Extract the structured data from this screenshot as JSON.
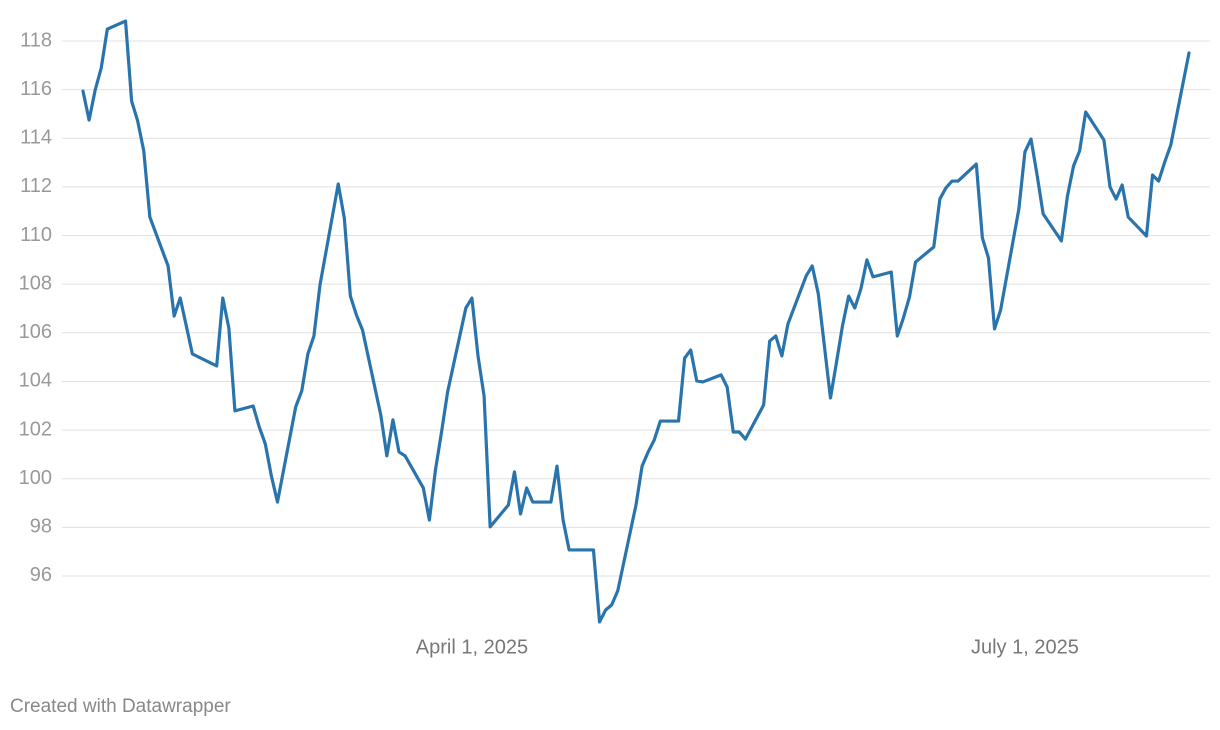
{
  "chart_data": {
    "type": "line",
    "x": [
      "2025-01-27",
      "2025-01-28",
      "2025-01-29",
      "2025-01-30",
      "2025-01-31",
      "2025-02-03",
      "2025-02-04",
      "2025-02-05",
      "2025-02-06",
      "2025-02-07",
      "2025-02-10",
      "2025-02-11",
      "2025-02-12",
      "2025-02-13",
      "2025-02-14",
      "2025-02-18",
      "2025-02-19",
      "2025-02-20",
      "2025-02-21",
      "2025-02-24",
      "2025-02-25",
      "2025-02-26",
      "2025-02-27",
      "2025-02-28",
      "2025-03-03",
      "2025-03-04",
      "2025-03-05",
      "2025-03-06",
      "2025-03-07",
      "2025-03-10",
      "2025-03-11",
      "2025-03-12",
      "2025-03-13",
      "2025-03-14",
      "2025-03-17",
      "2025-03-18",
      "2025-03-19",
      "2025-03-20",
      "2025-03-21",
      "2025-03-24",
      "2025-03-25",
      "2025-03-26",
      "2025-03-27",
      "2025-03-28",
      "2025-03-31",
      "2025-04-01",
      "2025-04-02",
      "2025-04-03",
      "2025-04-04",
      "2025-04-07",
      "2025-04-08",
      "2025-04-09",
      "2025-04-10",
      "2025-04-11",
      "2025-04-14",
      "2025-04-15",
      "2025-04-16",
      "2025-04-17",
      "2025-04-21",
      "2025-04-22",
      "2025-04-23",
      "2025-04-24",
      "2025-04-25",
      "2025-04-28",
      "2025-04-29",
      "2025-04-30",
      "2025-05-01",
      "2025-05-02",
      "2025-05-05",
      "2025-05-06",
      "2025-05-07",
      "2025-05-08",
      "2025-05-09",
      "2025-05-12",
      "2025-05-13",
      "2025-05-14",
      "2025-05-15",
      "2025-05-16",
      "2025-05-19",
      "2025-05-20",
      "2025-05-21",
      "2025-05-22",
      "2025-05-23",
      "2025-05-26",
      "2025-05-27",
      "2025-05-28",
      "2025-05-30",
      "2025-05-31",
      "2025-06-01",
      "2025-06-02",
      "2025-06-03",
      "2025-06-04",
      "2025-06-05",
      "2025-06-06",
      "2025-06-09",
      "2025-06-10",
      "2025-06-11",
      "2025-06-12",
      "2025-06-13",
      "2025-06-16",
      "2025-06-17",
      "2025-06-18",
      "2025-06-19",
      "2025-06-20",
      "2025-06-23",
      "2025-06-24",
      "2025-06-25",
      "2025-06-26",
      "2025-06-27",
      "2025-06-30",
      "2025-07-01",
      "2025-07-02",
      "2025-07-03",
      "2025-07-04",
      "2025-07-07",
      "2025-07-08",
      "2025-07-09",
      "2025-07-10",
      "2025-07-11",
      "2025-07-14",
      "2025-07-15",
      "2025-07-16",
      "2025-07-17",
      "2025-07-18",
      "2025-07-21",
      "2025-07-22",
      "2025-07-23",
      "2025-07-24",
      "2025-07-25",
      "2025-07-28"
    ],
    "values": [
      115.94,
      114.75,
      115.98,
      116.89,
      118.49,
      118.82,
      115.53,
      114.71,
      113.48,
      110.76,
      108.75,
      106.69,
      107.43,
      106.28,
      105.13,
      104.64,
      107.43,
      106.2,
      102.79,
      102.99,
      102.13,
      101.43,
      100.11,
      99.04,
      102.95,
      103.61,
      105.13,
      105.87,
      107.97,
      112.12,
      110.72,
      107.51,
      106.73,
      106.11,
      102.62,
      100.94,
      102.42,
      101.1,
      100.94,
      99.62,
      98.3,
      100.36,
      101.92,
      103.57,
      107.02,
      107.43,
      105.05,
      103.4,
      98.02,
      98.92,
      100.28,
      98.55,
      99.62,
      99.04,
      99.04,
      100.52,
      98.3,
      97.07,
      97.07,
      94.11,
      94.6,
      94.81,
      95.39,
      98.92,
      100.52,
      101.1,
      101.59,
      102.37,
      102.37,
      104.96,
      105.29,
      104.02,
      103.98,
      104.27,
      103.77,
      101.92,
      101.92,
      101.63,
      103.03,
      105.66,
      105.87,
      105.05,
      106.36,
      108.34,
      108.75,
      107.6,
      103.32,
      104.8,
      106.32,
      107.51,
      107.02,
      107.8,
      109.0,
      108.3,
      108.5,
      105.87,
      106.61,
      107.47,
      108.91,
      109.53,
      111.5,
      111.96,
      112.24,
      112.24,
      112.94,
      109.9,
      109.08,
      106.16,
      106.94,
      111.09,
      113.44,
      113.97,
      112.49,
      110.89,
      109.78,
      111.63,
      112.86,
      113.48,
      115.08,
      113.93,
      112.0,
      111.5,
      112.08,
      110.76,
      109.98,
      112.49,
      112.24,
      113.02,
      113.72,
      117.51
    ],
    "color": "#2a74ad",
    "xlim": [
      "2025-01-27",
      "2025-07-28"
    ],
    "xticks": [
      {
        "value": "2025-04-01",
        "label": "April 1, 2025"
      },
      {
        "value": "2025-07-01",
        "label": "July 1, 2025"
      }
    ],
    "ylim": [
      94,
      119
    ],
    "yticks": [
      96,
      98,
      100,
      102,
      104,
      106,
      108,
      110,
      112,
      114,
      116,
      118
    ],
    "grid": true,
    "credit": "Created with Datawrapper"
  }
}
